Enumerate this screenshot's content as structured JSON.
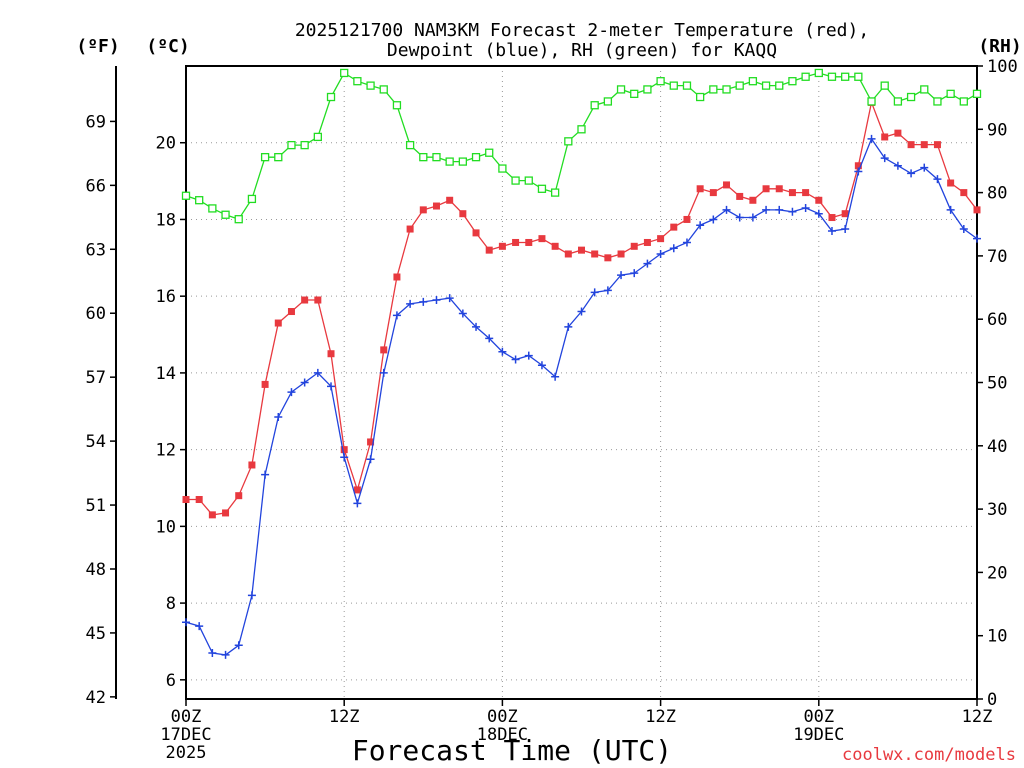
{
  "chart_data": {
    "type": "line",
    "title_line1": "2025121700 NAM3KM Forecast 2-meter Temperature (red),",
    "title_line2": "Dewpoint (blue), RH (green) for KAQQ",
    "xlabel": "Forecast Time (UTC)",
    "credit": "coolwx.com/models",
    "left_outer_label": "(ºF)",
    "left_inner_label": "(ºC)",
    "right_label": "(RH)",
    "x_unit": "forecast hour",
    "xlim": [
      0,
      60
    ],
    "celsius_ylim": [
      5.5,
      22
    ],
    "rh_ylim": [
      0,
      100
    ],
    "x_ticks": [
      {
        "hour": 0,
        "line1": "00Z",
        "line2": "17DEC",
        "line3": "2025"
      },
      {
        "hour": 12,
        "line1": "12Z",
        "line2": "",
        "line3": ""
      },
      {
        "hour": 24,
        "line1": "00Z",
        "line2": "18DEC",
        "line3": ""
      },
      {
        "hour": 36,
        "line1": "12Z",
        "line2": "",
        "line3": ""
      },
      {
        "hour": 48,
        "line1": "00Z",
        "line2": "19DEC",
        "line3": ""
      },
      {
        "hour": 60,
        "line1": "12Z",
        "line2": "",
        "line3": ""
      }
    ],
    "celsius_ticks": [
      "6",
      "8",
      "10",
      "12",
      "14",
      "16",
      "18",
      "20"
    ],
    "fahrenheit_ticks": [
      "42",
      "45",
      "48",
      "51",
      "54",
      "57",
      "60",
      "63",
      "66",
      "69"
    ],
    "rh_ticks": [
      "0",
      "10",
      "20",
      "30",
      "40",
      "50",
      "60",
      "70",
      "80",
      "90",
      "100"
    ],
    "series": [
      {
        "name": "Temperature",
        "color": "#e8393f",
        "marker": "filled-square",
        "axis": "celsius",
        "values": [
          10.7,
          10.7,
          10.3,
          10.35,
          10.8,
          11.6,
          13.7,
          15.3,
          15.6,
          15.9,
          15.9,
          14.5,
          12.0,
          10.95,
          12.2,
          14.6,
          16.5,
          17.75,
          18.25,
          18.35,
          18.5,
          18.15,
          17.65,
          17.2,
          17.3,
          17.4,
          17.4,
          17.5,
          17.3,
          17.1,
          17.2,
          17.1,
          17.0,
          17.1,
          17.3,
          17.4,
          17.5,
          17.8,
          18.0,
          18.8,
          18.7,
          18.9,
          18.6,
          18.5,
          18.8,
          18.8,
          18.7,
          18.7,
          18.5,
          18.05,
          18.15,
          19.4,
          21.05,
          20.15,
          20.25,
          19.95,
          19.95,
          19.95,
          18.95,
          18.7,
          18.25
        ]
      },
      {
        "name": "Dewpoint",
        "color": "#2244dd",
        "marker": "plus",
        "axis": "celsius",
        "values": [
          7.5,
          7.4,
          6.7,
          6.65,
          6.9,
          8.2,
          11.35,
          12.85,
          13.5,
          13.75,
          14.0,
          13.65,
          11.8,
          10.6,
          11.75,
          14.0,
          15.5,
          15.8,
          15.85,
          15.9,
          15.95,
          15.55,
          15.2,
          14.9,
          14.55,
          14.35,
          14.45,
          14.2,
          13.9,
          15.2,
          15.6,
          16.1,
          16.15,
          16.55,
          16.6,
          16.85,
          17.1,
          17.25,
          17.4,
          17.85,
          18.0,
          18.25,
          18.05,
          18.05,
          18.25,
          18.25,
          18.2,
          18.3,
          18.15,
          17.7,
          17.75,
          19.25,
          20.1,
          19.6,
          19.4,
          19.2,
          19.35,
          19.05,
          18.25,
          17.75,
          17.5
        ]
      },
      {
        "name": "RH",
        "color": "#22dd22",
        "marker": "open-square",
        "axis": "rh",
        "values": [
          79.5,
          78.8,
          77.5,
          76.5,
          75.8,
          79.0,
          85.6,
          85.6,
          87.5,
          87.5,
          88.8,
          95.1,
          98.9,
          97.6,
          96.9,
          96.3,
          93.8,
          87.5,
          85.6,
          85.6,
          84.9,
          84.9,
          85.6,
          86.3,
          83.8,
          81.9,
          81.9,
          80.6,
          80.0,
          88.1,
          90.0,
          93.8,
          94.4,
          96.3,
          95.6,
          96.3,
          97.6,
          96.9,
          96.9,
          95.1,
          96.3,
          96.3,
          96.9,
          97.6,
          96.9,
          96.9,
          97.6,
          98.3,
          98.9,
          98.3,
          98.3,
          98.3,
          94.4,
          96.9,
          94.4,
          95.1,
          96.3,
          94.4,
          95.6,
          94.4,
          95.6
        ]
      }
    ]
  }
}
